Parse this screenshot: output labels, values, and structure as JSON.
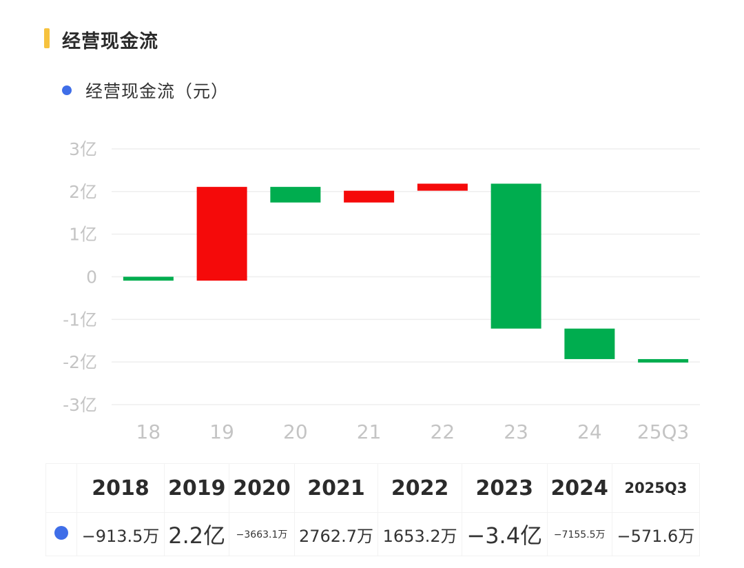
{
  "section": {
    "title": "经营现金流"
  },
  "legend": {
    "label": "经营现金流（元）",
    "color": "#3f6ee8"
  },
  "colors": {
    "increase": "#f50a0a",
    "decrease": "#00ad4f",
    "grid": "#eeeeee",
    "axis_text": "#c4c4c4"
  },
  "chart_data": {
    "type": "bar",
    "subtype": "waterfall",
    "categories": [
      "18",
      "19",
      "20",
      "21",
      "22",
      "23",
      "24",
      "25Q3"
    ],
    "unit": "亿",
    "values": [
      -0.09135,
      2.2,
      -0.36631,
      0.27627,
      0.16532,
      -3.4,
      -0.71555,
      -0.05716
    ],
    "running_totals": [
      -0.09135,
      2.10865,
      1.74234,
      2.01861,
      2.18393,
      -1.21607,
      -1.93162,
      -1.98878
    ],
    "ylim": [
      -3,
      3
    ],
    "yticks": [
      3,
      2,
      1,
      0,
      -1,
      -2,
      -3
    ],
    "ytick_labels": [
      "3亿",
      "2亿",
      "1亿",
      "0",
      "-1亿",
      "-2亿",
      "-3亿"
    ],
    "grid": true
  },
  "table": {
    "years": [
      "2018",
      "2019",
      "2020",
      "2021",
      "2022",
      "2023",
      "2024",
      "2025Q3"
    ],
    "values": [
      "−913.5万",
      "2.2亿",
      "−3663.1万",
      "2762.7万",
      "1653.2万",
      "−3.4亿",
      "−7155.5万",
      "−571.6万"
    ]
  }
}
